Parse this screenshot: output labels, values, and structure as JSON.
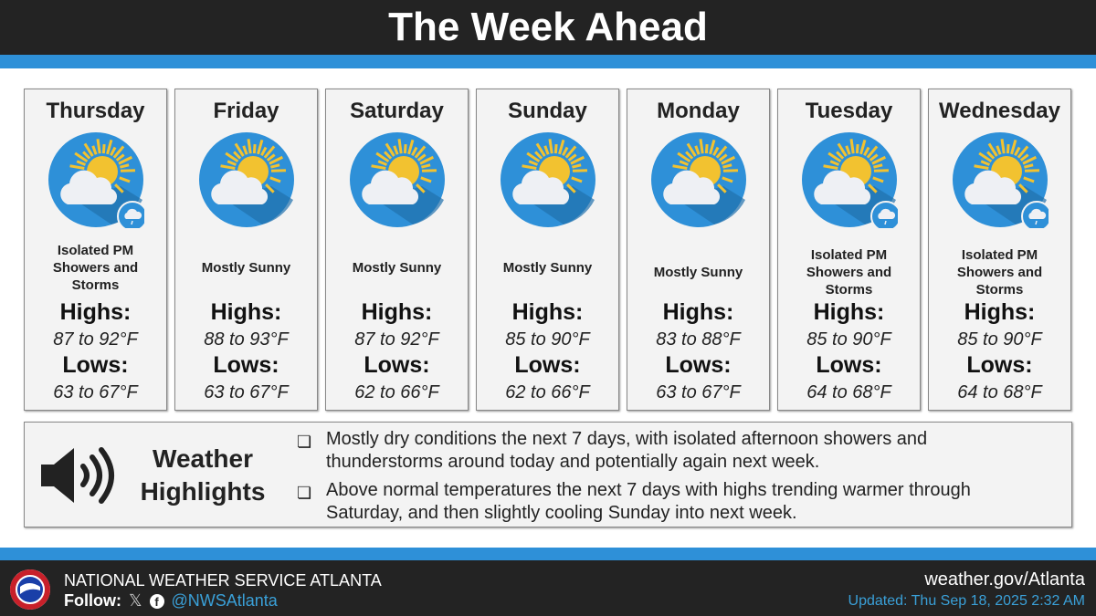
{
  "header": {
    "title": "The Week Ahead"
  },
  "days": [
    {
      "day": "Thursday",
      "icon": "mostly-sunny-with-showers-icon",
      "storm": true,
      "condition": "Isolated PM Showers and Storms",
      "highs_label": "Highs:",
      "highs": "87 to 92°F",
      "lows_label": "Lows:",
      "lows": "63 to 67°F"
    },
    {
      "day": "Friday",
      "icon": "mostly-sunny-icon",
      "storm": false,
      "condition": "Mostly Sunny",
      "highs_label": "Highs:",
      "highs": "88 to 93°F",
      "lows_label": "Lows:",
      "lows": "63 to 67°F"
    },
    {
      "day": "Saturday",
      "icon": "mostly-sunny-icon",
      "storm": false,
      "condition": "Mostly Sunny",
      "highs_label": "Highs:",
      "highs": "87 to 92°F",
      "lows_label": "Lows:",
      "lows": "62 to 66°F"
    },
    {
      "day": "Sunday",
      "icon": "mostly-sunny-icon",
      "storm": false,
      "condition": "Mostly Sunny",
      "highs_label": "Highs:",
      "highs": "85 to 90°F",
      "lows_label": "Lows:",
      "lows": "62 to 66°F"
    },
    {
      "day": "Monday",
      "icon": "mostly-sunny-icon",
      "storm": false,
      "condition": "Mostly Sunny",
      "highs_label": "Highs:",
      "highs": "83 to 88°F",
      "lows_label": "Lows:",
      "lows": "63 to 67°F"
    },
    {
      "day": "Tuesday",
      "icon": "mostly-sunny-with-showers-icon",
      "storm": true,
      "condition": "Isolated PM Showers and Storms",
      "highs_label": "Highs:",
      "highs": "85 to 90°F",
      "lows_label": "Lows:",
      "lows": "64 to 68°F"
    },
    {
      "day": "Wednesday",
      "icon": "mostly-sunny-with-showers-icon",
      "storm": true,
      "condition": "Isolated PM Showers and Storms",
      "highs_label": "Highs:",
      "highs": "85 to 90°F",
      "lows_label": "Lows:",
      "lows": "64 to 68°F"
    }
  ],
  "highlights": {
    "title_line1": "Weather",
    "title_line2": "Highlights",
    "bullets": [
      "Mostly dry conditions the next 7 days, with isolated afternoon showers and thunderstorms around today and potentially again next week.",
      "Above normal temperatures the next 7 days with highs trending warmer through Saturday, and then slightly cooling Sunday into next week."
    ]
  },
  "footer": {
    "org": "NATIONAL WEATHER SERVICE ATLANTA",
    "follow": "Follow:",
    "handle": "@NWSAtlanta",
    "website": "weather.gov/Atlanta",
    "updated": "Updated: Thu Sep 18, 2025 2:32 AM"
  },
  "colors": {
    "accent": "#2e90d8",
    "dark": "#232323",
    "link": "#3aa0d8"
  }
}
